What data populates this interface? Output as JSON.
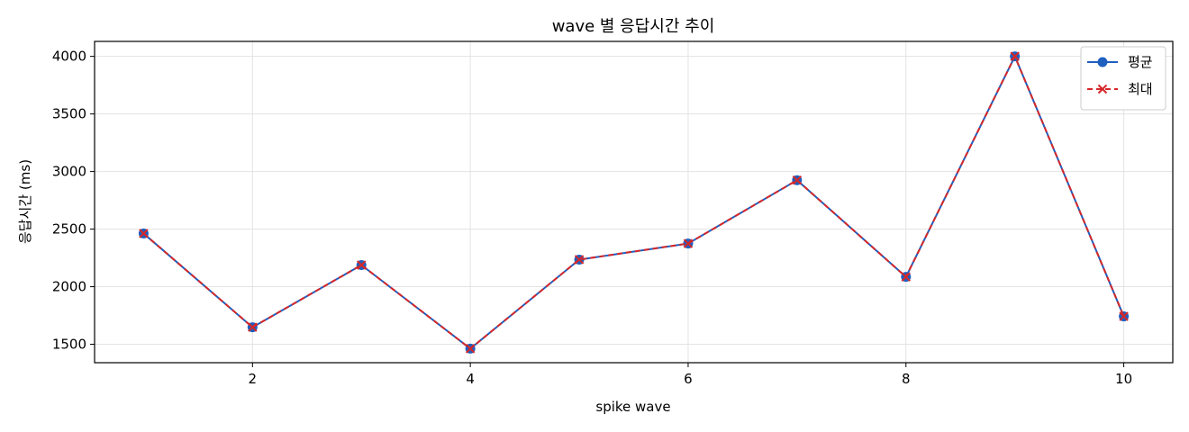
{
  "chart_data": {
    "type": "line",
    "title": "wave 별 응답시간 추이",
    "xlabel": "spike wave",
    "ylabel": "응답시간 (ms)",
    "xlim": [
      0.55,
      10.45
    ],
    "ylim": [
      1340,
      4130
    ],
    "xticks": [
      2,
      4,
      6,
      8,
      10
    ],
    "yticks": [
      1500,
      2000,
      2500,
      3000,
      3500,
      4000
    ],
    "grid": true,
    "legend_position": "top-right",
    "x": [
      1,
      2,
      3,
      4,
      5,
      6,
      7,
      8,
      9,
      10
    ],
    "series": [
      {
        "name": "평균",
        "color": "#1f5fbf",
        "marker": "circle",
        "line_style": "solid",
        "values": [
          2462,
          1648,
          2188,
          1462,
          2235,
          2375,
          2925,
          2085,
          4000,
          1742
        ]
      },
      {
        "name": "최대",
        "color": "#d62728",
        "marker": "x",
        "line_style": "dashed",
        "values": [
          2462,
          1648,
          2188,
          1462,
          2235,
          2375,
          2925,
          2085,
          4000,
          1742
        ]
      }
    ]
  }
}
